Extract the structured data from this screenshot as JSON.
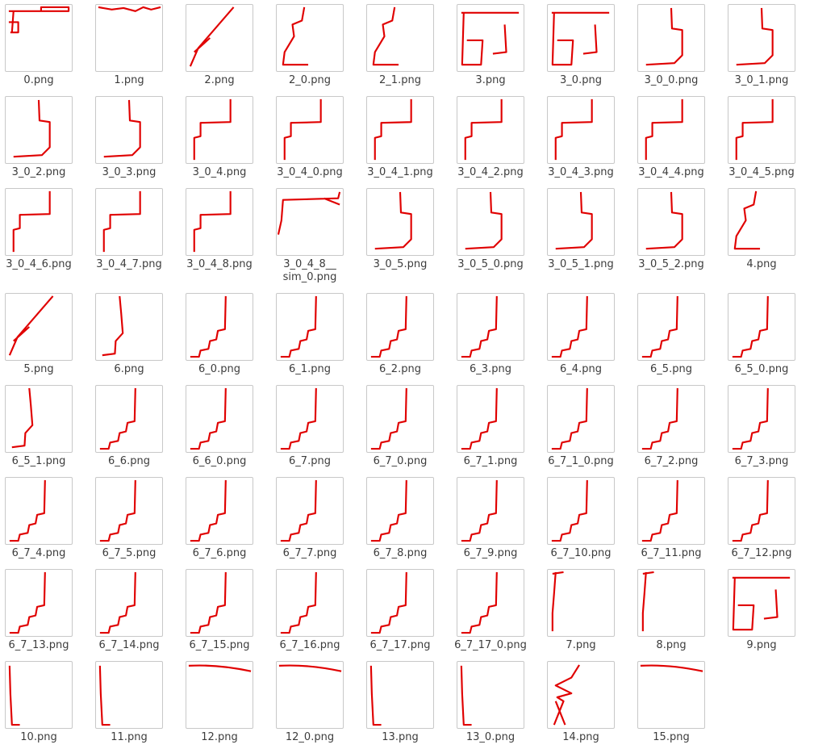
{
  "files": [
    "0.png",
    "1.png",
    "2.png",
    "2_0.png",
    "2_1.png",
    "3.png",
    "3_0.png",
    "3_0_0.png",
    "3_0_1.png",
    "3_0_2.png",
    "3_0_3.png",
    "3_0_4.png",
    "3_0_4_0.png",
    "3_0_4_1.png",
    "3_0_4_2.png",
    "3_0_4_3.png",
    "3_0_4_4.png",
    "3_0_4_5.png",
    "3_0_4_6.png",
    "3_0_4_7.png",
    "3_0_4_8.png",
    "3_0_4_8__sim_0.png",
    "3_0_5.png",
    "3_0_5_0.png",
    "3_0_5_1.png",
    "3_0_5_2.png",
    "4.png",
    "5.png",
    "6.png",
    "6_0.png",
    "6_1.png",
    "6_2.png",
    "6_3.png",
    "6_4.png",
    "6_5.png",
    "6_5_0.png",
    "6_5_1.png",
    "6_6.png",
    "6_6_0.png",
    "6_7.png",
    "6_7_0.png",
    "6_7_1.png",
    "6_7_1_0.png",
    "6_7_2.png",
    "6_7_3.png",
    "6_7_4.png",
    "6_7_5.png",
    "6_7_6.png",
    "6_7_7.png",
    "6_7_8.png",
    "6_7_9.png",
    "6_7_10.png",
    "6_7_11.png",
    "6_7_12.png",
    "6_7_13.png",
    "6_7_14.png",
    "6_7_15.png",
    "6_7_16.png",
    "6_7_17.png",
    "6_7_17_0.png",
    "7.png",
    "8.png",
    "9.png",
    "10.png",
    "11.png",
    "12.png",
    "12_0.png",
    "13.png",
    "13_0.png",
    "14.png",
    "15.png"
  ]
}
